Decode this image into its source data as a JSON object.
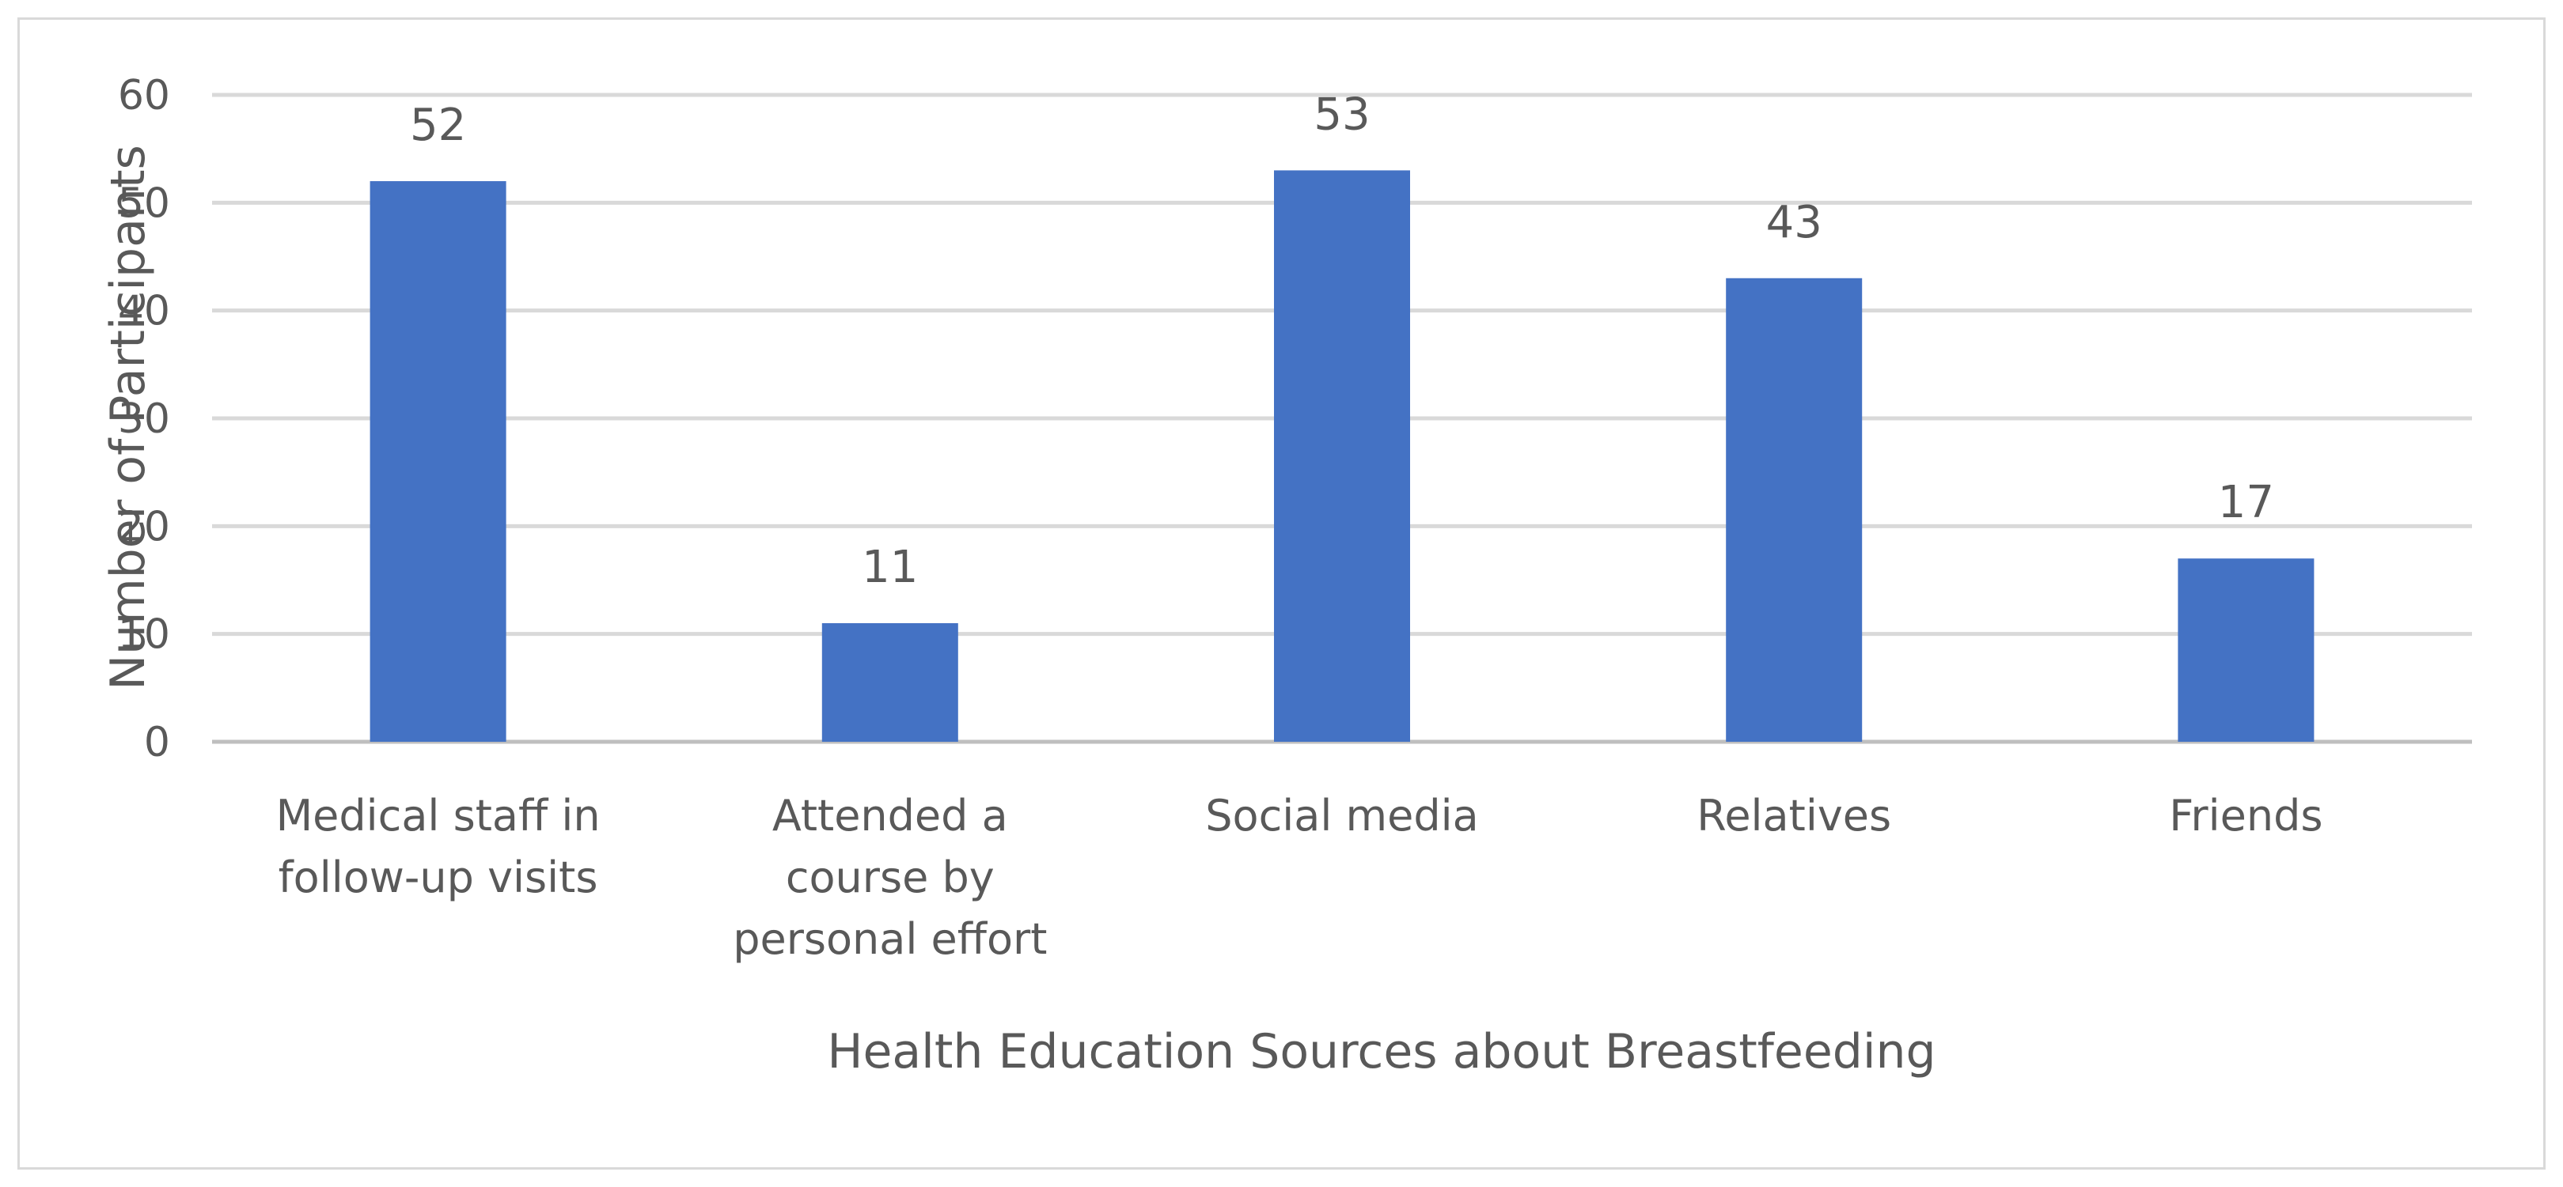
{
  "chart_data": {
    "type": "bar",
    "title": "",
    "categories": [
      [
        "Medical staff in",
        "follow-up visits"
      ],
      [
        "Attended a",
        "course by",
        "personal effort"
      ],
      [
        "Social media"
      ],
      [
        "Relatives"
      ],
      [
        "Friends"
      ]
    ],
    "values": [
      52,
      11,
      53,
      43,
      17
    ],
    "xlabel": "Health Education Sources about Breastfeeding",
    "ylabel": "Number of Participants",
    "ylim": [
      0,
      60
    ],
    "yticks": [
      0,
      10,
      20,
      30,
      40,
      50,
      60
    ],
    "grid": true,
    "data_labels": true,
    "legend": "none",
    "colors": {
      "bar": "#4472c4",
      "grid": "#d9d9d9",
      "text": "#595959",
      "frame": "#d9d9d9"
    }
  }
}
